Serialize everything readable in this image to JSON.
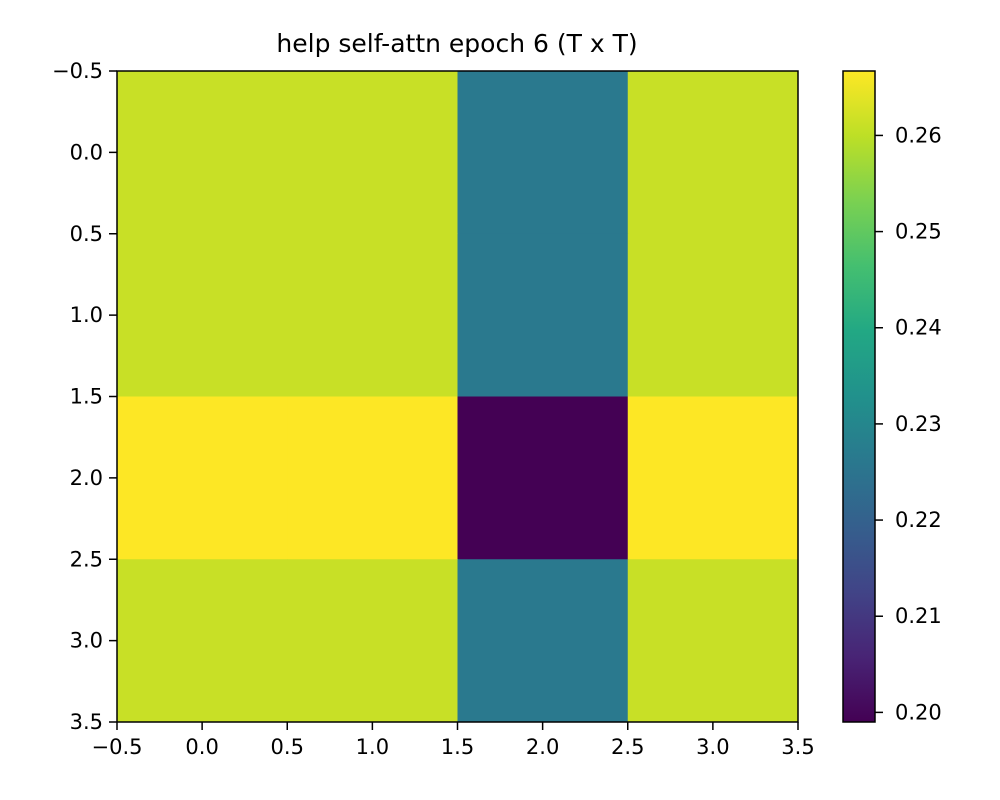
{
  "chart_data": {
    "type": "heatmap",
    "title": "help self-attn epoch 6 (T x T)",
    "xlabel": "",
    "ylabel": "",
    "x_ticks": [
      "−0.5",
      "0.0",
      "0.5",
      "1.0",
      "1.5",
      "2.0",
      "2.5",
      "3.0",
      "3.5"
    ],
    "y_ticks": [
      "−0.5",
      "0.0",
      "0.5",
      "1.0",
      "1.5",
      "2.0",
      "2.5",
      "3.0",
      "3.5"
    ],
    "xlim": [
      -0.5,
      3.5
    ],
    "ylim": [
      3.5,
      -0.5
    ],
    "rows": 4,
    "cols": 4,
    "values": [
      [
        0.2611,
        0.2611,
        0.2263,
        0.2611
      ],
      [
        0.2611,
        0.2611,
        0.2263,
        0.2611
      ],
      [
        0.2667,
        0.2667,
        0.199,
        0.2667
      ],
      [
        0.2611,
        0.2611,
        0.2263,
        0.2611
      ]
    ],
    "colormap": "viridis",
    "colorbar": {
      "vmin": 0.199,
      "vmax": 0.2667,
      "ticks": [
        0.2,
        0.21,
        0.22,
        0.23,
        0.24,
        0.25,
        0.26
      ],
      "tick_labels": [
        "0.20",
        "0.21",
        "0.22",
        "0.23",
        "0.24",
        "0.25",
        "0.26"
      ]
    },
    "grid": false
  }
}
